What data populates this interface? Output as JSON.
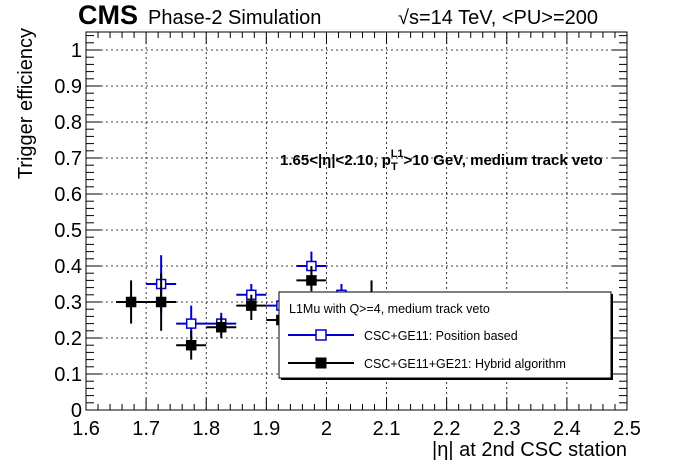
{
  "header": {
    "experiment": "CMS",
    "status": "Phase-2 Simulation",
    "conditions": "√s=14 TeV, <PU>=200"
  },
  "region_label": {
    "prefix": "1.65<|η|<2.10, p",
    "sub": "T",
    "sup": "L1",
    "suffix": ">10 GeV, medium track veto"
  },
  "legend": {
    "title": "L1Mu with Q>=4, medium track veto",
    "placement": "bottom-right"
  },
  "chart_data": {
    "type": "scatter",
    "xlabel": "|η| at 2nd CSC station",
    "ylabel": "Trigger efficiency",
    "xlim": [
      1.6,
      2.5
    ],
    "ylim": [
      0,
      1.05
    ],
    "grid": true,
    "xticks": [
      "1.6",
      "1.7",
      "1.8",
      "1.9",
      "2",
      "2.1",
      "2.2",
      "2.3",
      "2.4",
      "2.5"
    ],
    "yticks": [
      "0",
      "0.1",
      "0.2",
      "0.3",
      "0.4",
      "0.5",
      "0.6",
      "0.7",
      "0.8",
      "0.9",
      "1"
    ],
    "series": [
      {
        "name": "CSC+GE11: Position based",
        "color": "#0000cc",
        "marker": "open-square",
        "points": [
          {
            "x": 1.725,
            "y": 0.35,
            "xerr": 0.025,
            "ylo": 0.27,
            "yhi": 0.43
          },
          {
            "x": 1.775,
            "y": 0.24,
            "xerr": 0.025,
            "ylo": 0.2,
            "yhi": 0.29
          },
          {
            "x": 1.825,
            "y": 0.24,
            "xerr": 0.025,
            "ylo": 0.21,
            "yhi": 0.27
          },
          {
            "x": 1.875,
            "y": 0.32,
            "xerr": 0.025,
            "ylo": 0.29,
            "yhi": 0.35
          },
          {
            "x": 1.925,
            "y": 0.29,
            "xerr": 0.025,
            "ylo": 0.26,
            "yhi": 0.32
          },
          {
            "x": 1.975,
            "y": 0.4,
            "xerr": 0.025,
            "ylo": 0.37,
            "yhi": 0.44
          },
          {
            "x": 2.025,
            "y": 0.32,
            "xerr": 0.025,
            "ylo": 0.28,
            "yhi": 0.35
          }
        ]
      },
      {
        "name": "CSC+GE11+GE21: Hybrid algorithm",
        "color": "#000000",
        "marker": "filled-square",
        "points": [
          {
            "x": 1.675,
            "y": 0.3,
            "xerr": 0.025,
            "ylo": 0.24,
            "yhi": 0.36
          },
          {
            "x": 1.725,
            "y": 0.3,
            "xerr": 0.025,
            "ylo": 0.22,
            "yhi": 0.38
          },
          {
            "x": 1.775,
            "y": 0.18,
            "xerr": 0.025,
            "ylo": 0.14,
            "yhi": 0.22
          },
          {
            "x": 1.825,
            "y": 0.23,
            "xerr": 0.025,
            "ylo": 0.2,
            "yhi": 0.26
          },
          {
            "x": 1.875,
            "y": 0.29,
            "xerr": 0.025,
            "ylo": 0.25,
            "yhi": 0.32
          },
          {
            "x": 1.925,
            "y": 0.25,
            "xerr": 0.025,
            "ylo": 0.22,
            "yhi": 0.29
          },
          {
            "x": 1.975,
            "y": 0.36,
            "xerr": 0.025,
            "ylo": 0.33,
            "yhi": 0.4
          },
          {
            "x": 2.025,
            "y": 0.28,
            "xerr": 0.025,
            "ylo": 0.25,
            "yhi": 0.31
          },
          {
            "x": 2.075,
            "y": 0.31,
            "xerr": 0.025,
            "ylo": 0.27,
            "yhi": 0.36
          }
        ]
      }
    ]
  }
}
